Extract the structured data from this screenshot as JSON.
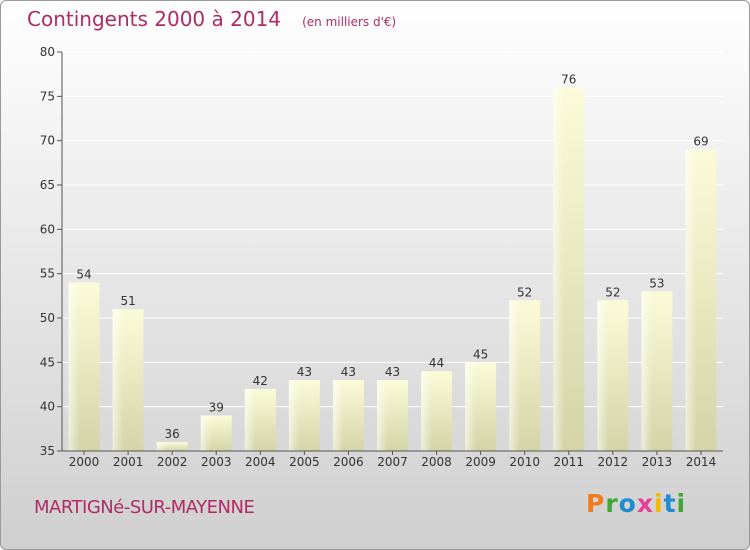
{
  "header": {
    "title": "Contingents 2000 à 2014",
    "subtitle": "(en milliers d'€)"
  },
  "footer": {
    "place": "MARTIGNé-SUR-MAYENNE",
    "logo": "Proxiti",
    "logo_colors": [
      "#f07c1c",
      "#3fa535",
      "#1e8bd2",
      "#e63f97",
      "#f5b800",
      "#1e8bd2",
      "#3fa535"
    ]
  },
  "chart_data": {
    "type": "bar",
    "title": "Contingents 2000 à 2014",
    "subtitle": "(en milliers d'€)",
    "xlabel": "",
    "ylabel": "",
    "categories": [
      "2000",
      "2001",
      "2002",
      "2003",
      "2004",
      "2005",
      "2006",
      "2007",
      "2008",
      "2009",
      "2010",
      "2011",
      "2012",
      "2013",
      "2014"
    ],
    "values": [
      54,
      51,
      36,
      39,
      42,
      43,
      43,
      43,
      44,
      45,
      52,
      76,
      52,
      53,
      69
    ],
    "ylim": [
      35,
      80
    ],
    "yticks": [
      35,
      40,
      45,
      50,
      55,
      60,
      65,
      70,
      75,
      80
    ],
    "grid": true,
    "bar_color": "#f4f4cc"
  }
}
